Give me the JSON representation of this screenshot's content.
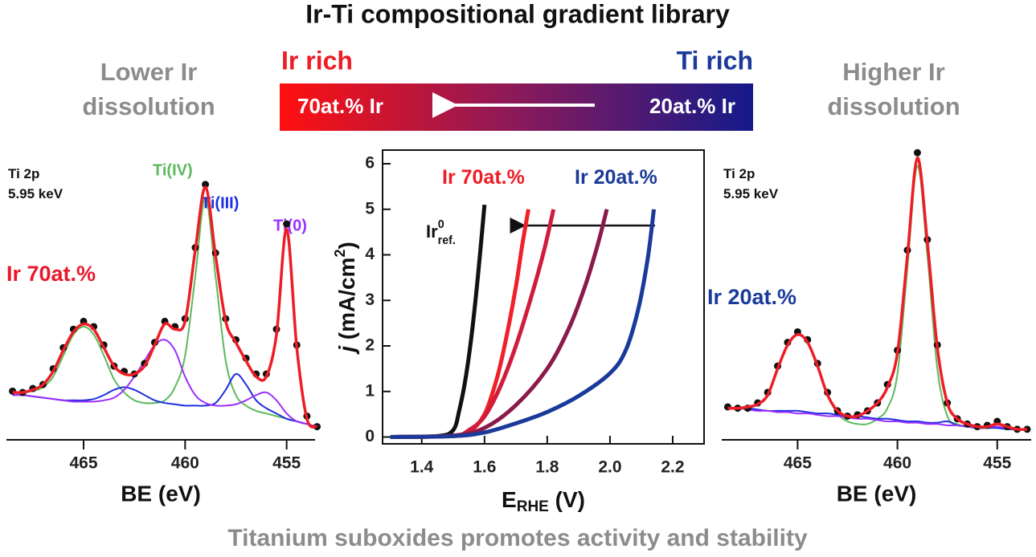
{
  "header": {
    "title": "Ir-Ti compositional gradient library"
  },
  "left_note": {
    "lines": [
      "Lower Ir",
      "dissolution"
    ]
  },
  "right_note": {
    "lines": [
      "Higher Ir",
      "dissolution"
    ]
  },
  "gradient_bar": {
    "left_heading": "Ir rich",
    "right_heading": "Ti rich",
    "left_label": "70at.% Ir",
    "right_label": "20at.% Ir"
  },
  "footer": {
    "caption": "Titanium suboxides promotes activity and stability"
  },
  "chart_data": [
    {
      "type": "line",
      "xlabel": "BE (eV)",
      "xlim": [
        468.8,
        453.6
      ],
      "ylim": [
        0,
        100
      ],
      "xticks": [
        465,
        460,
        455
      ],
      "frame": false,
      "annotations": [
        {
          "text": "Ti 2p",
          "color": "#111111"
        },
        {
          "text": "5.95 keV",
          "color": "#111111"
        },
        {
          "text": "Ir 70at.%",
          "color": "#e8192c"
        }
      ],
      "x": [
        468.5,
        468,
        467.5,
        467,
        466.5,
        466,
        465.5,
        465,
        464.5,
        464,
        463.5,
        463,
        462.5,
        462,
        461.5,
        461,
        460.5,
        460,
        459.5,
        459,
        458.5,
        458,
        457.5,
        457,
        456.5,
        456,
        455.5,
        455,
        454.5,
        454,
        453.5
      ],
      "series": [
        {
          "name": "Ti(IV)",
          "color": "#5cb85c",
          "values": [
            18,
            18,
            18.5,
            20,
            24,
            32,
            40,
            43,
            40,
            32,
            23,
            18,
            15,
            14,
            14,
            15,
            20,
            32,
            62,
            92,
            62,
            30,
            17,
            13,
            11,
            10,
            9,
            8,
            7,
            6,
            5
          ]
        },
        {
          "name": "Ti(III)",
          "color": "#1f2fe0",
          "values": [
            17,
            17,
            16.5,
            16,
            15.5,
            15,
            15,
            15,
            15.5,
            17,
            19,
            20,
            19,
            17,
            15,
            14,
            13.5,
            13,
            13,
            13,
            14,
            19,
            25,
            21,
            15,
            12,
            10,
            8,
            7,
            6,
            5
          ]
        },
        {
          "name": "Ti(0)",
          "color": "#9b30ff",
          "values": [
            17,
            17,
            16.5,
            16,
            15.5,
            15,
            14.5,
            14.5,
            14.5,
            15,
            16,
            19,
            24,
            30,
            36,
            38,
            34,
            24,
            17,
            14,
            13,
            13,
            13.5,
            15,
            17,
            18,
            15,
            10,
            7,
            6,
            5
          ]
        },
        {
          "color": "#111111",
          "markers": true,
          "values": [
            18.5,
            18,
            19.5,
            21,
            27,
            35,
            42,
            45,
            43,
            36,
            28,
            26,
            25,
            29,
            37,
            45,
            43,
            46,
            73,
            97,
            71,
            46,
            38,
            31,
            25,
            25,
            42,
            82,
            36,
            9,
            5
          ]
        },
        {
          "color": "#ee1c25",
          "values": [
            18,
            18,
            19,
            21,
            26,
            34,
            41,
            44,
            42,
            35,
            28,
            25,
            25,
            28,
            36,
            44,
            42,
            45,
            72,
            96,
            70,
            45,
            37,
            30,
            24,
            24,
            40,
            80,
            35,
            8,
            5
          ]
        }
      ]
    },
    {
      "type": "line",
      "xlim": [
        1.275,
        2.3
      ],
      "ylim": [
        -0.15,
        6.3
      ],
      "frame": true,
      "xlabel": {
        "main": "E",
        "sub": "RHE",
        "rest": " (V)"
      },
      "ylabel": {
        "main": "j",
        "rest": " (mA/cm",
        "sup": "2",
        "end": ")"
      },
      "xticks": [
        1.4,
        1.6,
        1.8,
        {
          "value": 2,
          "label": "2.0"
        },
        2.2
      ],
      "yticks": [
        0,
        1,
        2,
        3,
        4,
        5,
        6
      ],
      "annotations": [
        {
          "text": "Ir 70at.%",
          "color": "#ee1c25"
        },
        {
          "text": "Ir 20at.%",
          "color": "#1a3a9a"
        },
        {
          "text": "Ir",
          "sup": "0",
          "sub": "ref.",
          "color": "#111111"
        }
      ],
      "series": [
        {
          "color": "#111111",
          "x": [
            1.3,
            1.45,
            1.5,
            1.52,
            1.54,
            1.56,
            1.58,
            1.6
          ],
          "values": [
            0,
            0.02,
            0.15,
            0.6,
            1.3,
            2.3,
            3.6,
            5.1
          ]
        },
        {
          "color": "#f0202a",
          "x": [
            1.3,
            1.5,
            1.55,
            1.6,
            1.64,
            1.67,
            1.7,
            1.72,
            1.74
          ],
          "values": [
            0,
            0.02,
            0.1,
            0.5,
            1.3,
            2.2,
            3.3,
            4.2,
            5.0
          ]
        },
        {
          "color": "#d01c3c",
          "x": [
            1.3,
            1.5,
            1.55,
            1.6,
            1.65,
            1.7,
            1.75,
            1.79,
            1.82
          ],
          "values": [
            0,
            0.03,
            0.15,
            0.45,
            1.1,
            2.0,
            3.1,
            4.1,
            5.0
          ]
        },
        {
          "color": "#8b1a4a",
          "x": [
            1.3,
            1.5,
            1.6,
            1.7,
            1.8,
            1.87,
            1.92,
            1.96,
            1.99
          ],
          "values": [
            0,
            0.03,
            0.2,
            0.7,
            1.5,
            2.4,
            3.3,
            4.2,
            5.0
          ]
        },
        {
          "color": "#1a3a9a",
          "x": [
            1.3,
            1.5,
            1.6,
            1.7,
            1.8,
            1.9,
            2.0,
            2.05,
            2.09,
            2.12,
            2.14
          ],
          "values": [
            0,
            0.02,
            0.1,
            0.3,
            0.55,
            0.9,
            1.4,
            1.9,
            2.8,
            3.9,
            5.0
          ]
        }
      ]
    },
    {
      "type": "line",
      "xlabel": "BE (eV)",
      "xlim": [
        468.8,
        453.3
      ],
      "ylim": [
        0,
        110
      ],
      "xticks": [
        465,
        460,
        455
      ],
      "frame": false,
      "annotations": [
        {
          "text": "Ti 2p",
          "color": "#111111"
        },
        {
          "text": "5.95 keV",
          "color": "#111111"
        },
        {
          "text": "Ir 20at.%",
          "color": "#1a3a9a"
        }
      ],
      "x": [
        468.5,
        468,
        467.5,
        467,
        466.5,
        466,
        465.5,
        465,
        464.5,
        464,
        463.5,
        463,
        462.5,
        462,
        461.5,
        461,
        460.5,
        460,
        459.5,
        459,
        458.5,
        458,
        457.5,
        457,
        456.5,
        456,
        455.5,
        455,
        454.5,
        454,
        453.5
      ],
      "series": [
        {
          "color": "#5cb85c",
          "values": [
            12,
            12,
            12.5,
            13.5,
            17,
            27,
            36,
            40,
            37,
            28,
            17,
            10,
            7,
            6,
            6,
            8,
            12,
            25,
            65,
            104,
            70,
            27,
            9,
            6,
            5,
            4.5,
            4.5,
            4.5,
            4,
            4,
            4
          ]
        },
        {
          "color": "#1f2fe0",
          "values": [
            12,
            12,
            12,
            11.5,
            11,
            11,
            11,
            11,
            10.5,
            10,
            10,
            9.5,
            9,
            9,
            8.5,
            8,
            8,
            7.5,
            7,
            7,
            6.5,
            6.5,
            7,
            5.5,
            5,
            4.5,
            4.5,
            4.5,
            4,
            4,
            4
          ]
        },
        {
          "color": "#9b30ff",
          "values": [
            12,
            12,
            11.5,
            11,
            11,
            10.5,
            10.5,
            10,
            10,
            9.5,
            9,
            9,
            8.5,
            8,
            8,
            7.5,
            7,
            7,
            6.5,
            6.5,
            6,
            6,
            5.5,
            5.5,
            5,
            5,
            5,
            5,
            4.5,
            4,
            4
          ]
        },
        {
          "color": "#111111",
          "markers": true,
          "values": [
            12.5,
            12,
            12,
            14,
            18,
            28,
            37,
            41,
            38,
            29,
            18,
            11,
            9,
            9.5,
            11,
            14,
            21,
            34,
            72,
            109,
            76,
            36,
            14,
            8,
            6,
            5,
            5.5,
            7,
            5,
            4,
            4
          ]
        },
        {
          "color": "#ee1c25",
          "values": [
            12,
            12,
            12.5,
            13.5,
            17,
            27,
            36,
            40,
            37,
            28,
            17,
            11,
            9,
            9,
            11,
            14,
            20,
            33,
            70,
            107,
            75,
            35,
            14,
            8,
            6,
            5,
            5,
            6,
            5,
            4,
            4
          ]
        }
      ]
    }
  ]
}
